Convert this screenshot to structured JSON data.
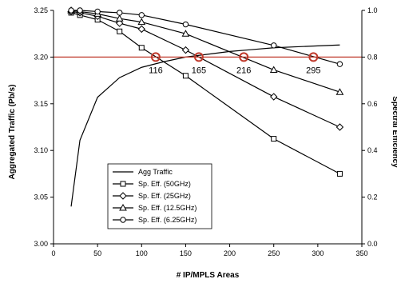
{
  "chart_data": {
    "type": "line",
    "xlabel": "# IP/MPLS Areas",
    "ylabel_left": "Aggregated Traffic (Pb/s)",
    "ylabel_right": "Spectral Efficiency",
    "xlim": [
      0,
      350
    ],
    "ylim_left": [
      3.0,
      3.25
    ],
    "ylim_right": [
      0.0,
      1.0
    ],
    "x_ticks": [
      "0",
      "50",
      "100",
      "150",
      "200",
      "250",
      "300",
      "350"
    ],
    "y_ticks_left": [
      "3.00",
      "3.05",
      "3.10",
      "3.15",
      "3.20",
      "3.25"
    ],
    "y_ticks_right": [
      "0.0",
      "0.2",
      "0.4",
      "0.6",
      "0.8",
      "1.0"
    ],
    "grid": false,
    "legend_position": "bottom-left",
    "threshold": {
      "axis": "right",
      "value": 0.8,
      "color": "#c0392b"
    },
    "series": [
      {
        "name": "Agg Traffic",
        "axis": "left",
        "marker": "none",
        "x": [
          20,
          30,
          50,
          75,
          100,
          125,
          150,
          175,
          200,
          225,
          250,
          275,
          300,
          325
        ],
        "y": [
          3.04,
          3.111,
          3.157,
          3.178,
          3.189,
          3.195,
          3.2,
          3.203,
          3.206,
          3.208,
          3.21,
          3.211,
          3.212,
          3.213
        ]
      },
      {
        "name": "Sp. Eff. (50GHz)",
        "axis": "right",
        "marker": "square",
        "x": [
          20,
          30,
          50,
          75,
          100,
          150,
          250,
          325
        ],
        "y": [
          0.99,
          0.98,
          0.96,
          0.91,
          0.84,
          0.72,
          0.45,
          0.3
        ]
      },
      {
        "name": "Sp. Eff. (25GHz)",
        "axis": "right",
        "marker": "diamond",
        "x": [
          20,
          30,
          50,
          75,
          100,
          150,
          250,
          325
        ],
        "y": [
          0.995,
          0.99,
          0.975,
          0.945,
          0.92,
          0.83,
          0.63,
          0.5
        ]
      },
      {
        "name": "Sp. Eff. (12.5GHz)",
        "axis": "right",
        "marker": "triangle",
        "x": [
          20,
          30,
          50,
          75,
          100,
          150,
          250,
          325
        ],
        "y": [
          1.0,
          0.995,
          0.985,
          0.965,
          0.95,
          0.9,
          0.745,
          0.65
        ]
      },
      {
        "name": "Sp. Eff. (6.25GHz)",
        "axis": "right",
        "marker": "circle",
        "x": [
          20,
          30,
          50,
          75,
          100,
          150,
          250,
          325
        ],
        "y": [
          1.0,
          1.0,
          0.995,
          0.99,
          0.98,
          0.94,
          0.85,
          0.77
        ]
      }
    ],
    "annotations": [
      {
        "label": "116",
        "x": 116,
        "y_right": 0.8
      },
      {
        "label": "165",
        "x": 165,
        "y_right": 0.8
      },
      {
        "label": "216",
        "x": 216,
        "y_right": 0.8
      },
      {
        "label": "295",
        "x": 295,
        "y_right": 0.8
      }
    ]
  }
}
